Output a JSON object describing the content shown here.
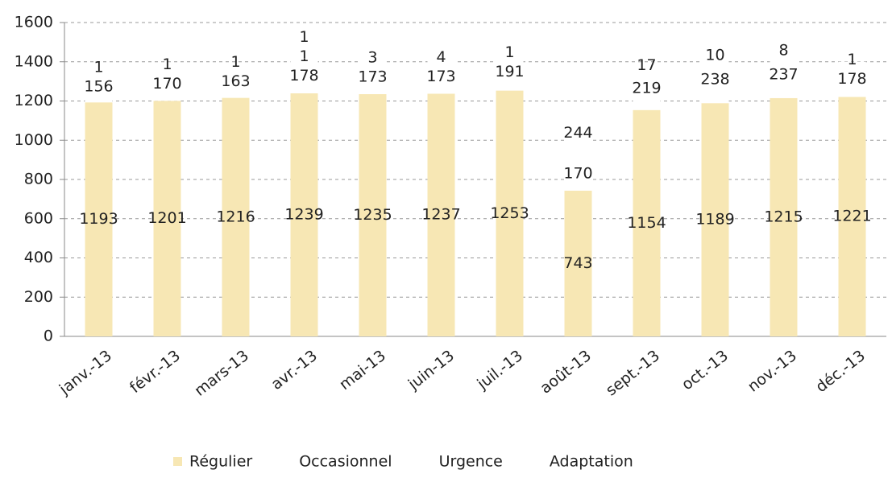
{
  "chart_data": {
    "type": "stacked_bar",
    "categories": [
      "janv.-13",
      "févr.-13",
      "mars-13",
      "avr.-13",
      "mai-13",
      "juin-13",
      "juil.-13",
      "août-13",
      "sept.-13",
      "oct.-13",
      "nov.-13",
      "déc.-13"
    ],
    "series": [
      {
        "name": "Régulier",
        "color": "#f7e7b4",
        "values": [
          1193,
          1201,
          1216,
          1239,
          1235,
          1237,
          1253,
          743,
          1154,
          1189,
          1215,
          1221
        ]
      },
      {
        "name": "Occasionnel",
        "color": "#ffffff",
        "values": [
          156,
          170,
          163,
          178,
          173,
          173,
          191,
          170,
          219,
          238,
          237,
          178
        ]
      },
      {
        "name": "Urgence",
        "color": "#ffffff",
        "values": [
          1,
          1,
          1,
          1,
          3,
          4,
          1,
          244,
          17,
          10,
          8,
          1
        ]
      },
      {
        "name": "Adaptation",
        "color": "#ffffff",
        "values": [
          null,
          null,
          null,
          1,
          null,
          null,
          null,
          null,
          null,
          null,
          null,
          null
        ]
      }
    ],
    "ylim": [
      0,
      1600
    ],
    "yticks": [
      0,
      200,
      400,
      600,
      800,
      1000,
      1200,
      1400,
      1600
    ],
    "grid": true
  }
}
